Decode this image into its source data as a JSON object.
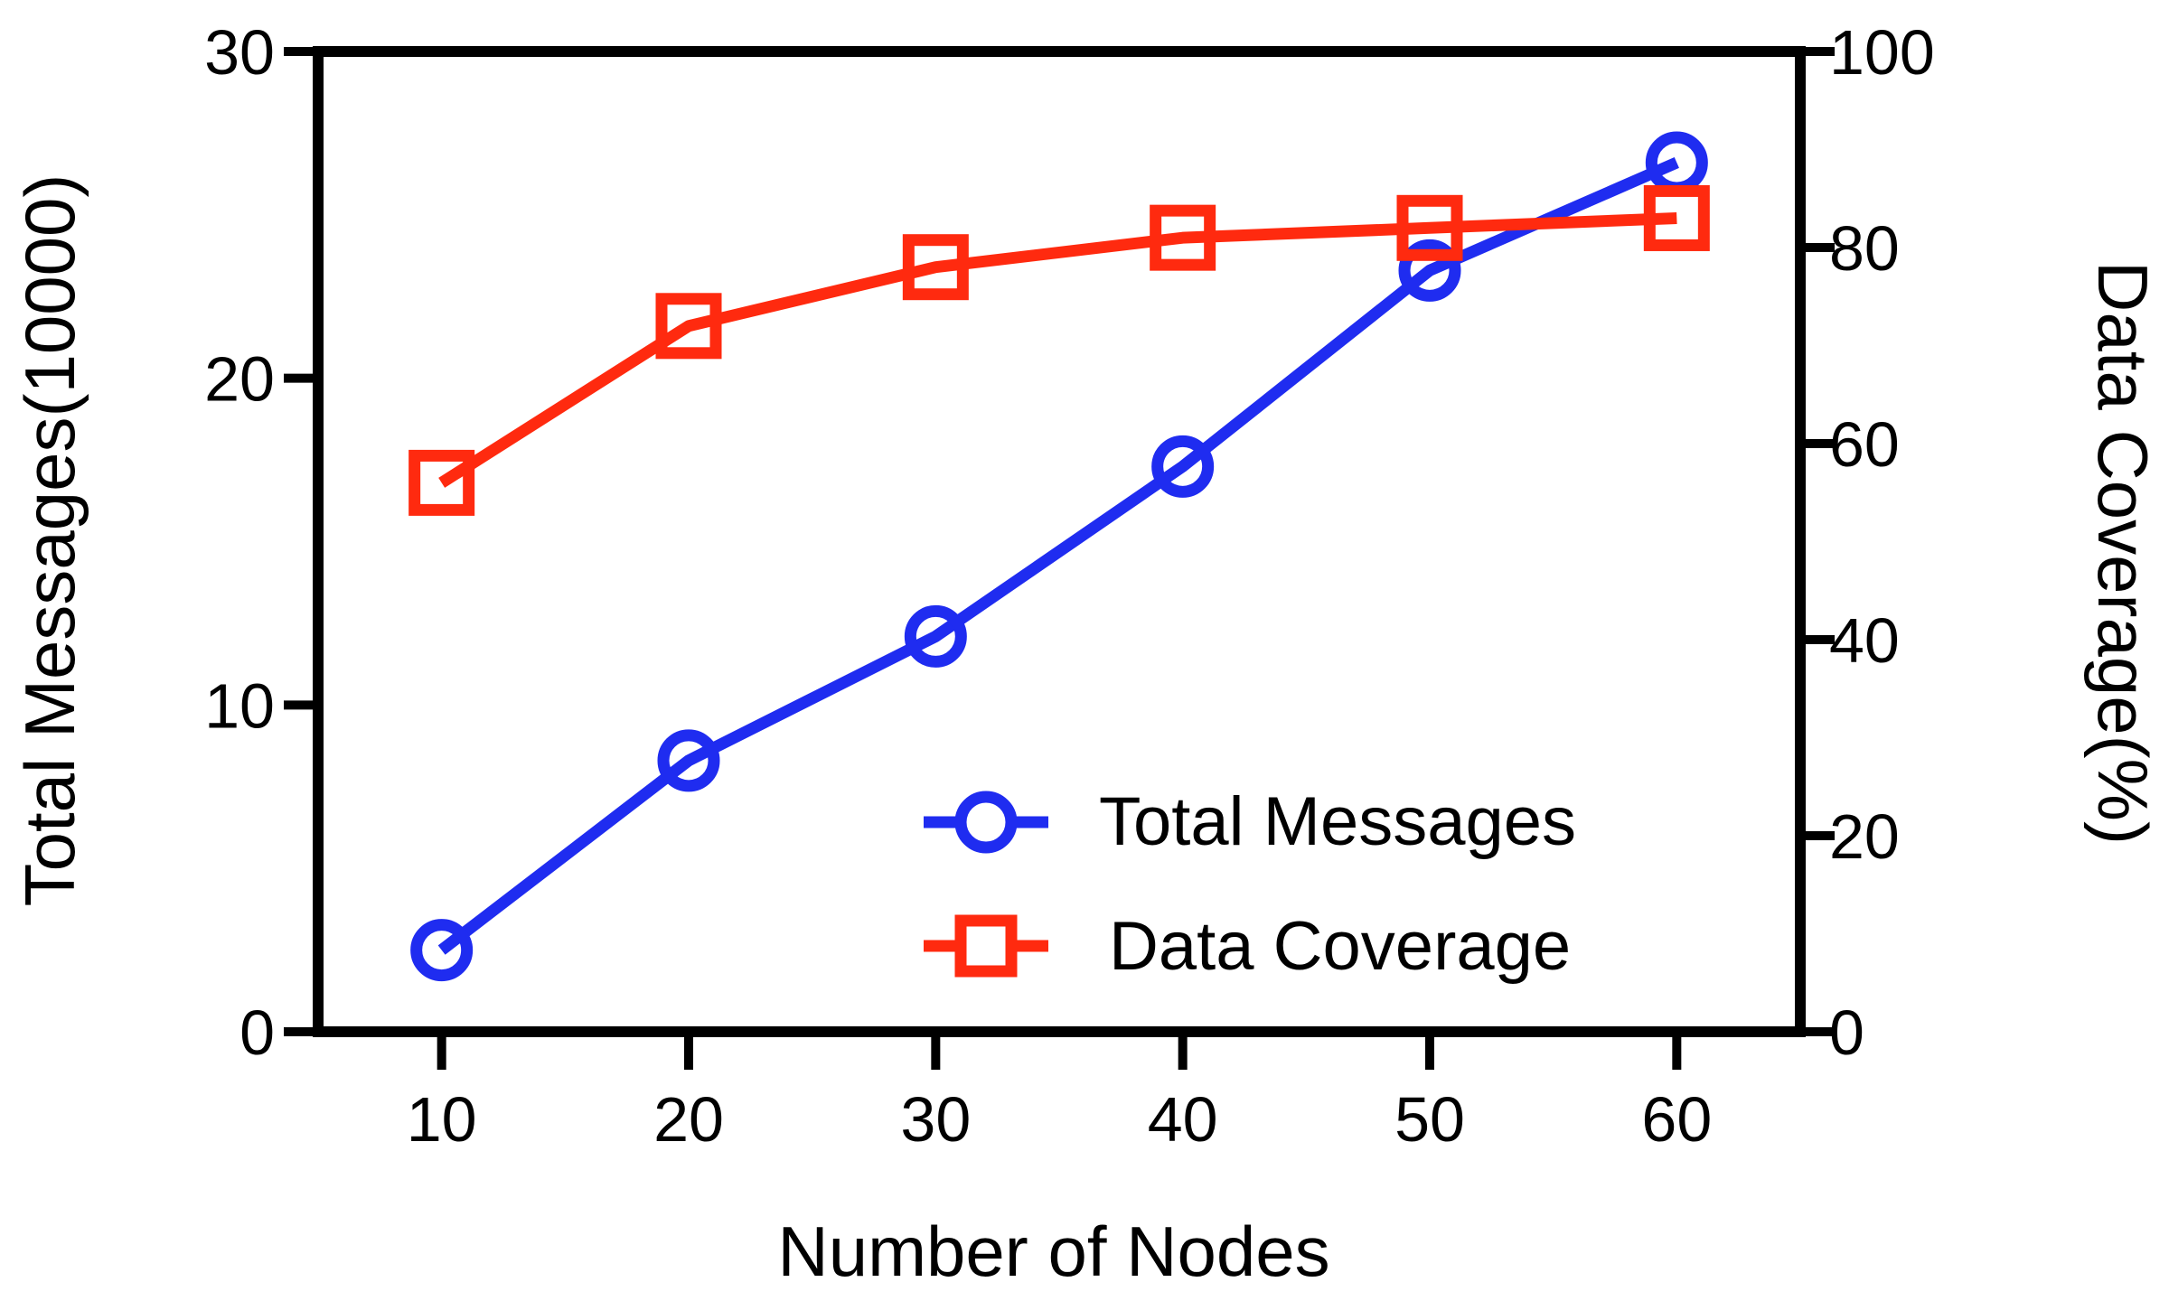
{
  "chart_data": {
    "type": "line",
    "title": "",
    "xlabel": "Number  of Nodes",
    "ylabel_left": "Total Messages(10000)",
    "ylabel_right": "Data Coverage(%)",
    "x": [
      10,
      20,
      30,
      40,
      50,
      60
    ],
    "x_ticks": [
      "10",
      "20",
      "30",
      "40",
      "50",
      "60"
    ],
    "ylim_left": [
      0,
      30
    ],
    "yticks_left": [
      "0",
      "10",
      "20",
      "30"
    ],
    "ylim_right": [
      0,
      100
    ],
    "yticks_right": [
      "0",
      "20",
      "40",
      "60",
      "80",
      "100"
    ],
    "grid": false,
    "legend_position": "bottom-right",
    "series": [
      {
        "name": "Total Messages",
        "axis": "left",
        "marker": "circle",
        "color": "#1f2cf0",
        "values": [
          2.5,
          8.3,
          12.1,
          17.3,
          23.3,
          26.6
        ]
      },
      {
        "name": "Data Coverage",
        "axis": "right",
        "marker": "square",
        "color": "#ff2a0f",
        "values": [
          56,
          72,
          78,
          81,
          82,
          83
        ]
      }
    ]
  }
}
